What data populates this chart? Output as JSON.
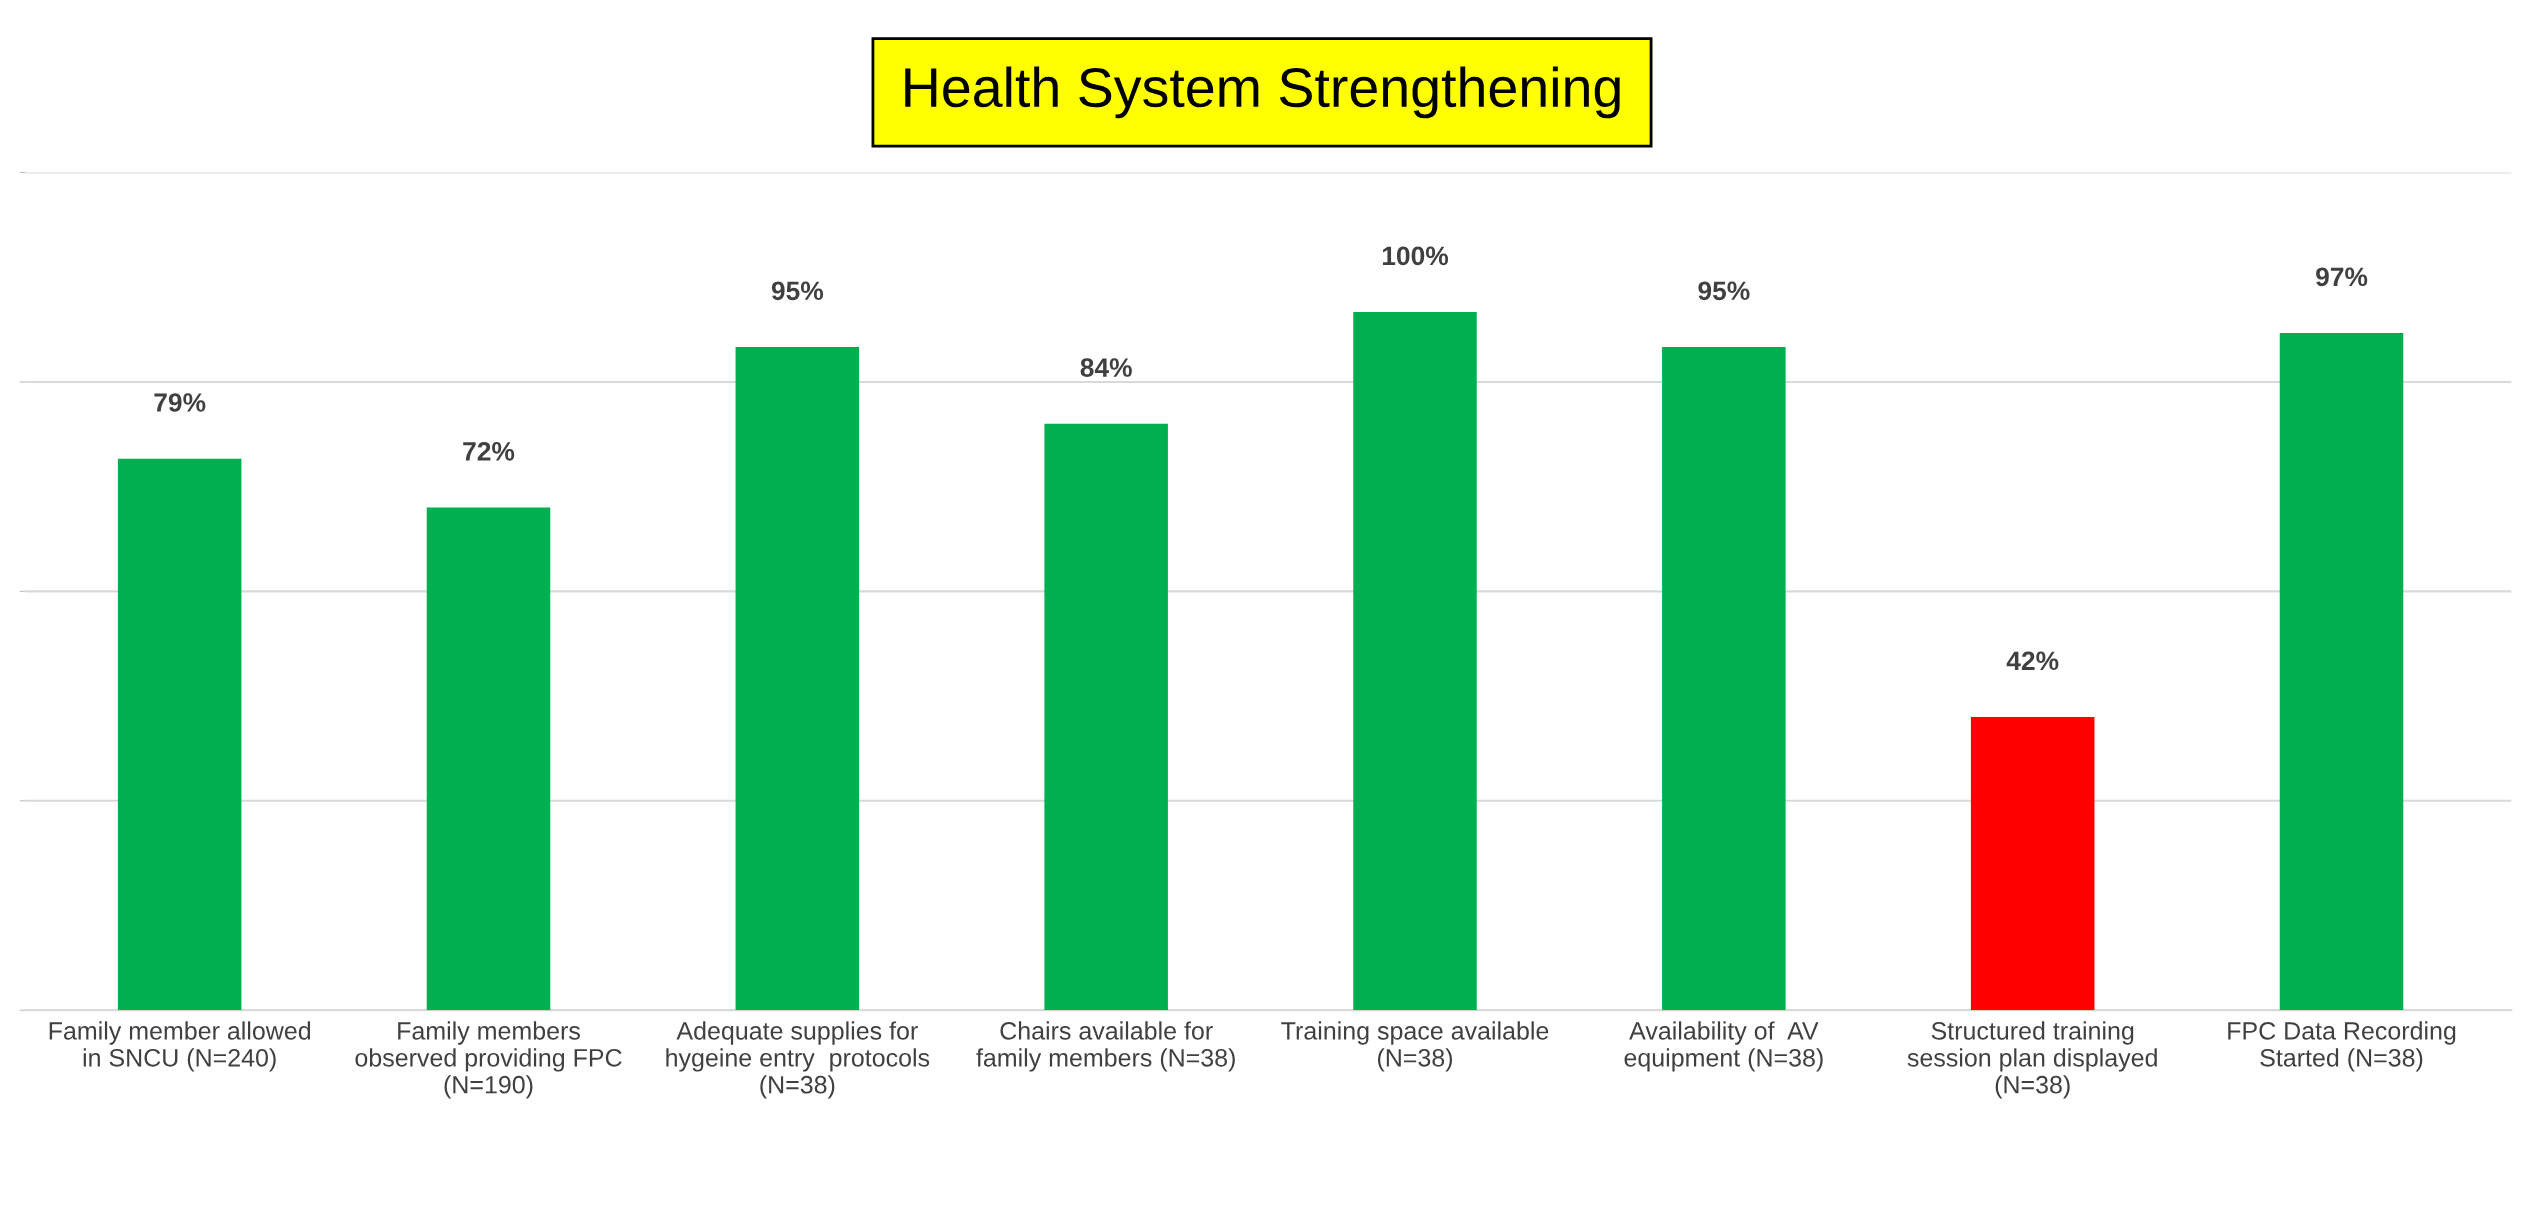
{
  "chart_data": {
    "type": "bar",
    "title": "Health System Strengthening",
    "categories": [
      "Family member allowed\nin SNCU (N=240)",
      "Family members\nobserved providing FPC\n(N=190)",
      "Adequate supplies for\nhygeine entry  protocols\n(N=38)",
      "Chairs available for\nfamily members (N=38)",
      "Training space available\n(N=38)",
      "Availability of  AV\nequipment (N=38)",
      "Structured training\nsession plan displayed\n(N=38)",
      "FPC Data Recording\nStarted (N=38)"
    ],
    "values": [
      79,
      72,
      95,
      84,
      100,
      95,
      42,
      97
    ],
    "colors": [
      "#00b050",
      "#00b050",
      "#00b050",
      "#00b050",
      "#00b050",
      "#00b050",
      "#ff0000",
      "#00b050"
    ],
    "value_labels": [
      "79%",
      "72%",
      "95%",
      "84%",
      "100%",
      "95%",
      "42%",
      "97%"
    ],
    "ylim": [
      0,
      120
    ],
    "yticks": [
      {
        "value": 0,
        "label": null
      },
      {
        "value": 30,
        "label": null
      },
      {
        "value": 60,
        "label": null
      },
      {
        "value": 90,
        "label": null
      },
      {
        "value": 120,
        "label": null
      }
    ],
    "grid": "y",
    "tick_labels": "x"
  }
}
